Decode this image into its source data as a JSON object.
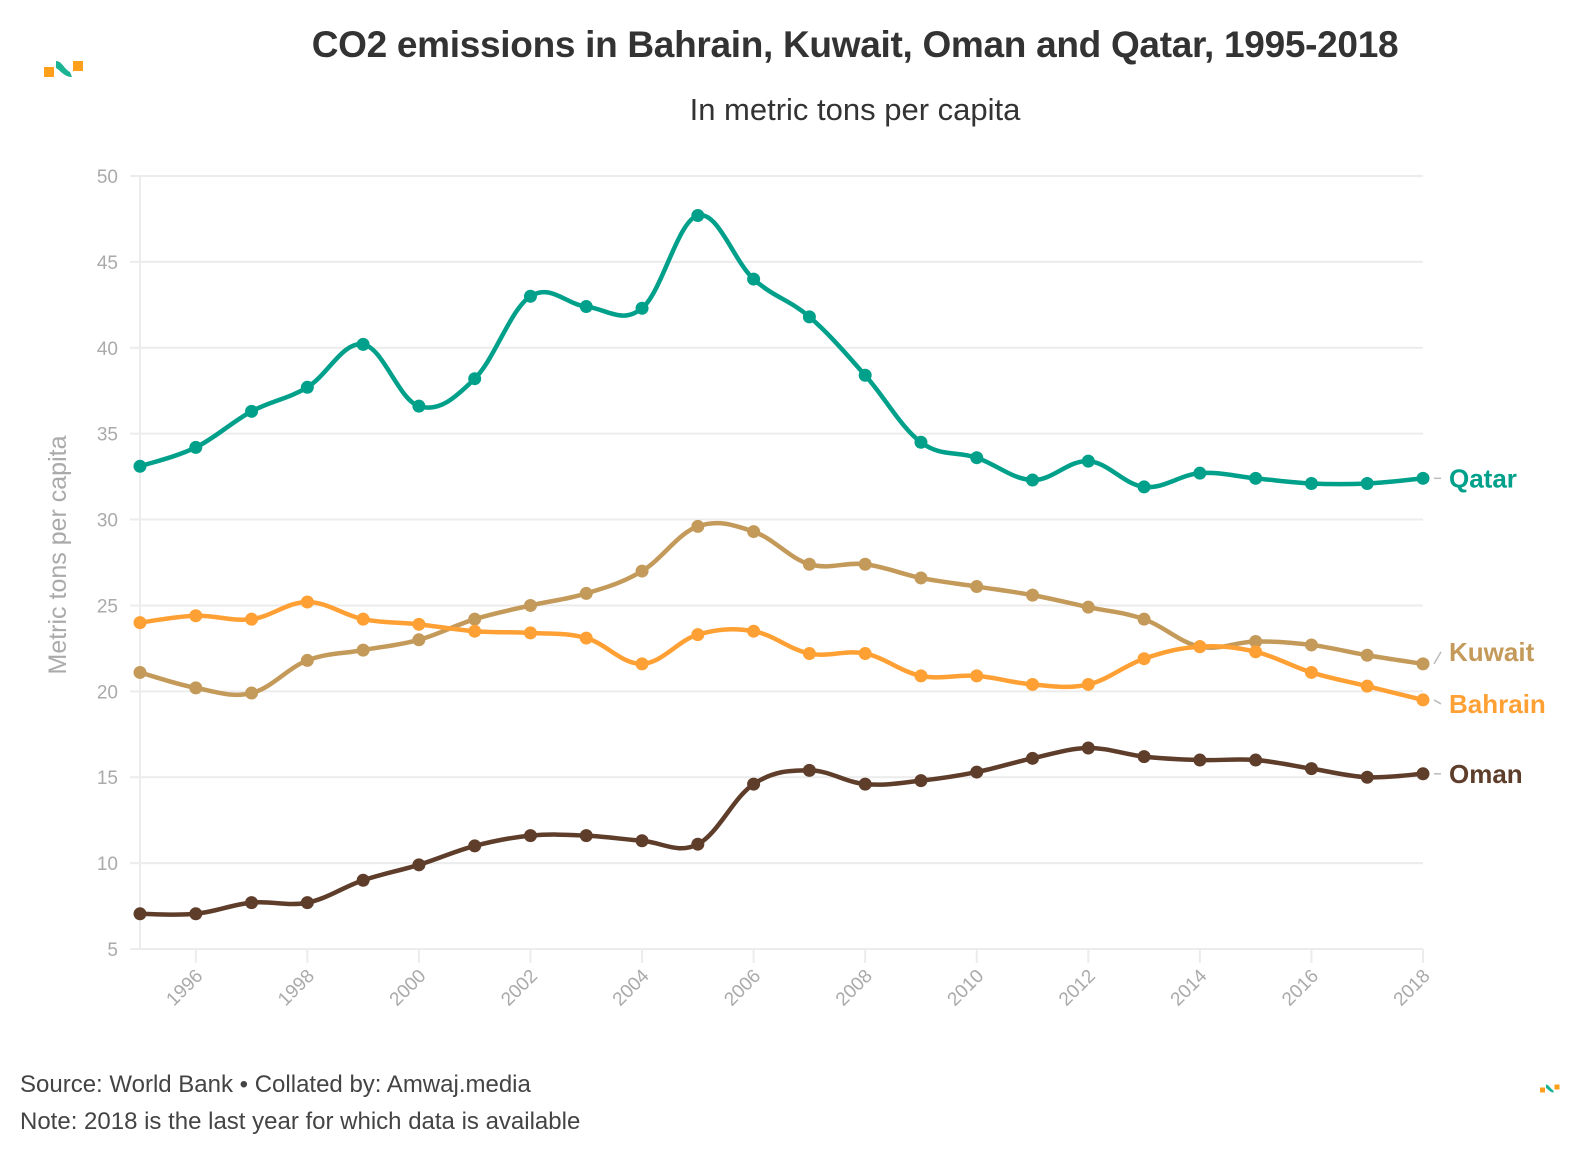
{
  "header": {
    "title": "CO2 emissions in Bahrain, Kuwait, Oman and Qatar, 1995-2018",
    "subtitle": "In metric tons per capita",
    "logo_icon": "amwaj-logo-icon"
  },
  "footer": {
    "source": "Source: World Bank • Collated by: Amwaj.media",
    "note": "Note: 2018 is the last year for which data is available",
    "logo_icon": "amwaj-logo-icon"
  },
  "colors": {
    "qatar": "#00a08a",
    "kuwait": "#c49a5a",
    "bahrain": "#ffa034",
    "oman": "#5e3d2a",
    "grid": "#ececec",
    "axis_text": "#aaaaaa",
    "logo_orange": "#ff9f1c",
    "logo_teal": "#1ab394"
  },
  "chart_data": {
    "type": "line",
    "title": "CO2 emissions in Bahrain, Kuwait, Oman and Qatar, 1995-2018",
    "subtitle": "In metric tons per capita",
    "xlabel": "",
    "ylabel": "Metric tons per capita",
    "x": [
      1995,
      1996,
      1997,
      1998,
      1999,
      2000,
      2001,
      2002,
      2003,
      2004,
      2005,
      2006,
      2007,
      2008,
      2009,
      2010,
      2011,
      2012,
      2013,
      2014,
      2015,
      2016,
      2017,
      2018
    ],
    "xticks": [
      "1996",
      "1998",
      "2000",
      "2002",
      "2004",
      "2006",
      "2008",
      "2010",
      "2012",
      "2014",
      "2016",
      "2018"
    ],
    "yticks": [
      "5",
      "10",
      "15",
      "20",
      "25",
      "30",
      "35",
      "40",
      "45",
      "50"
    ],
    "xlim": [
      1995,
      2018
    ],
    "ylim": [
      5,
      50
    ],
    "grid": true,
    "legend": "direct labels at line ends (right)",
    "series": [
      {
        "name": "Qatar",
        "color_key": "qatar",
        "values": [
          33.1,
          34.2,
          36.3,
          37.7,
          40.2,
          36.6,
          38.2,
          43.0,
          42.4,
          42.3,
          47.7,
          44.0,
          41.8,
          38.4,
          34.5,
          33.6,
          32.3,
          33.4,
          31.9,
          32.7,
          32.4,
          32.1,
          32.1,
          32.4
        ]
      },
      {
        "name": "Kuwait",
        "color_key": "kuwait",
        "values": [
          21.1,
          20.2,
          19.9,
          21.8,
          22.4,
          23.0,
          24.2,
          25.0,
          25.7,
          27.0,
          29.6,
          29.3,
          27.4,
          27.4,
          26.6,
          26.1,
          25.6,
          24.9,
          24.2,
          22.6,
          22.9,
          22.7,
          22.1,
          21.6
        ]
      },
      {
        "name": "Bahrain",
        "color_key": "bahrain",
        "values": [
          24.0,
          24.4,
          24.2,
          25.2,
          24.2,
          23.9,
          23.5,
          23.4,
          23.1,
          21.6,
          23.3,
          23.5,
          22.2,
          22.2,
          20.9,
          20.9,
          20.4,
          20.4,
          21.9,
          22.6,
          22.3,
          21.1,
          20.3,
          19.5
        ]
      },
      {
        "name": "Oman",
        "color_key": "oman",
        "values": [
          7.05,
          7.05,
          7.7,
          7.7,
          9.0,
          9.9,
          11.0,
          11.6,
          11.6,
          11.3,
          11.1,
          14.6,
          15.4,
          14.6,
          14.8,
          15.3,
          16.1,
          16.7,
          16.2,
          16.0,
          16.0,
          15.5,
          15.0,
          15.2
        ]
      }
    ]
  }
}
